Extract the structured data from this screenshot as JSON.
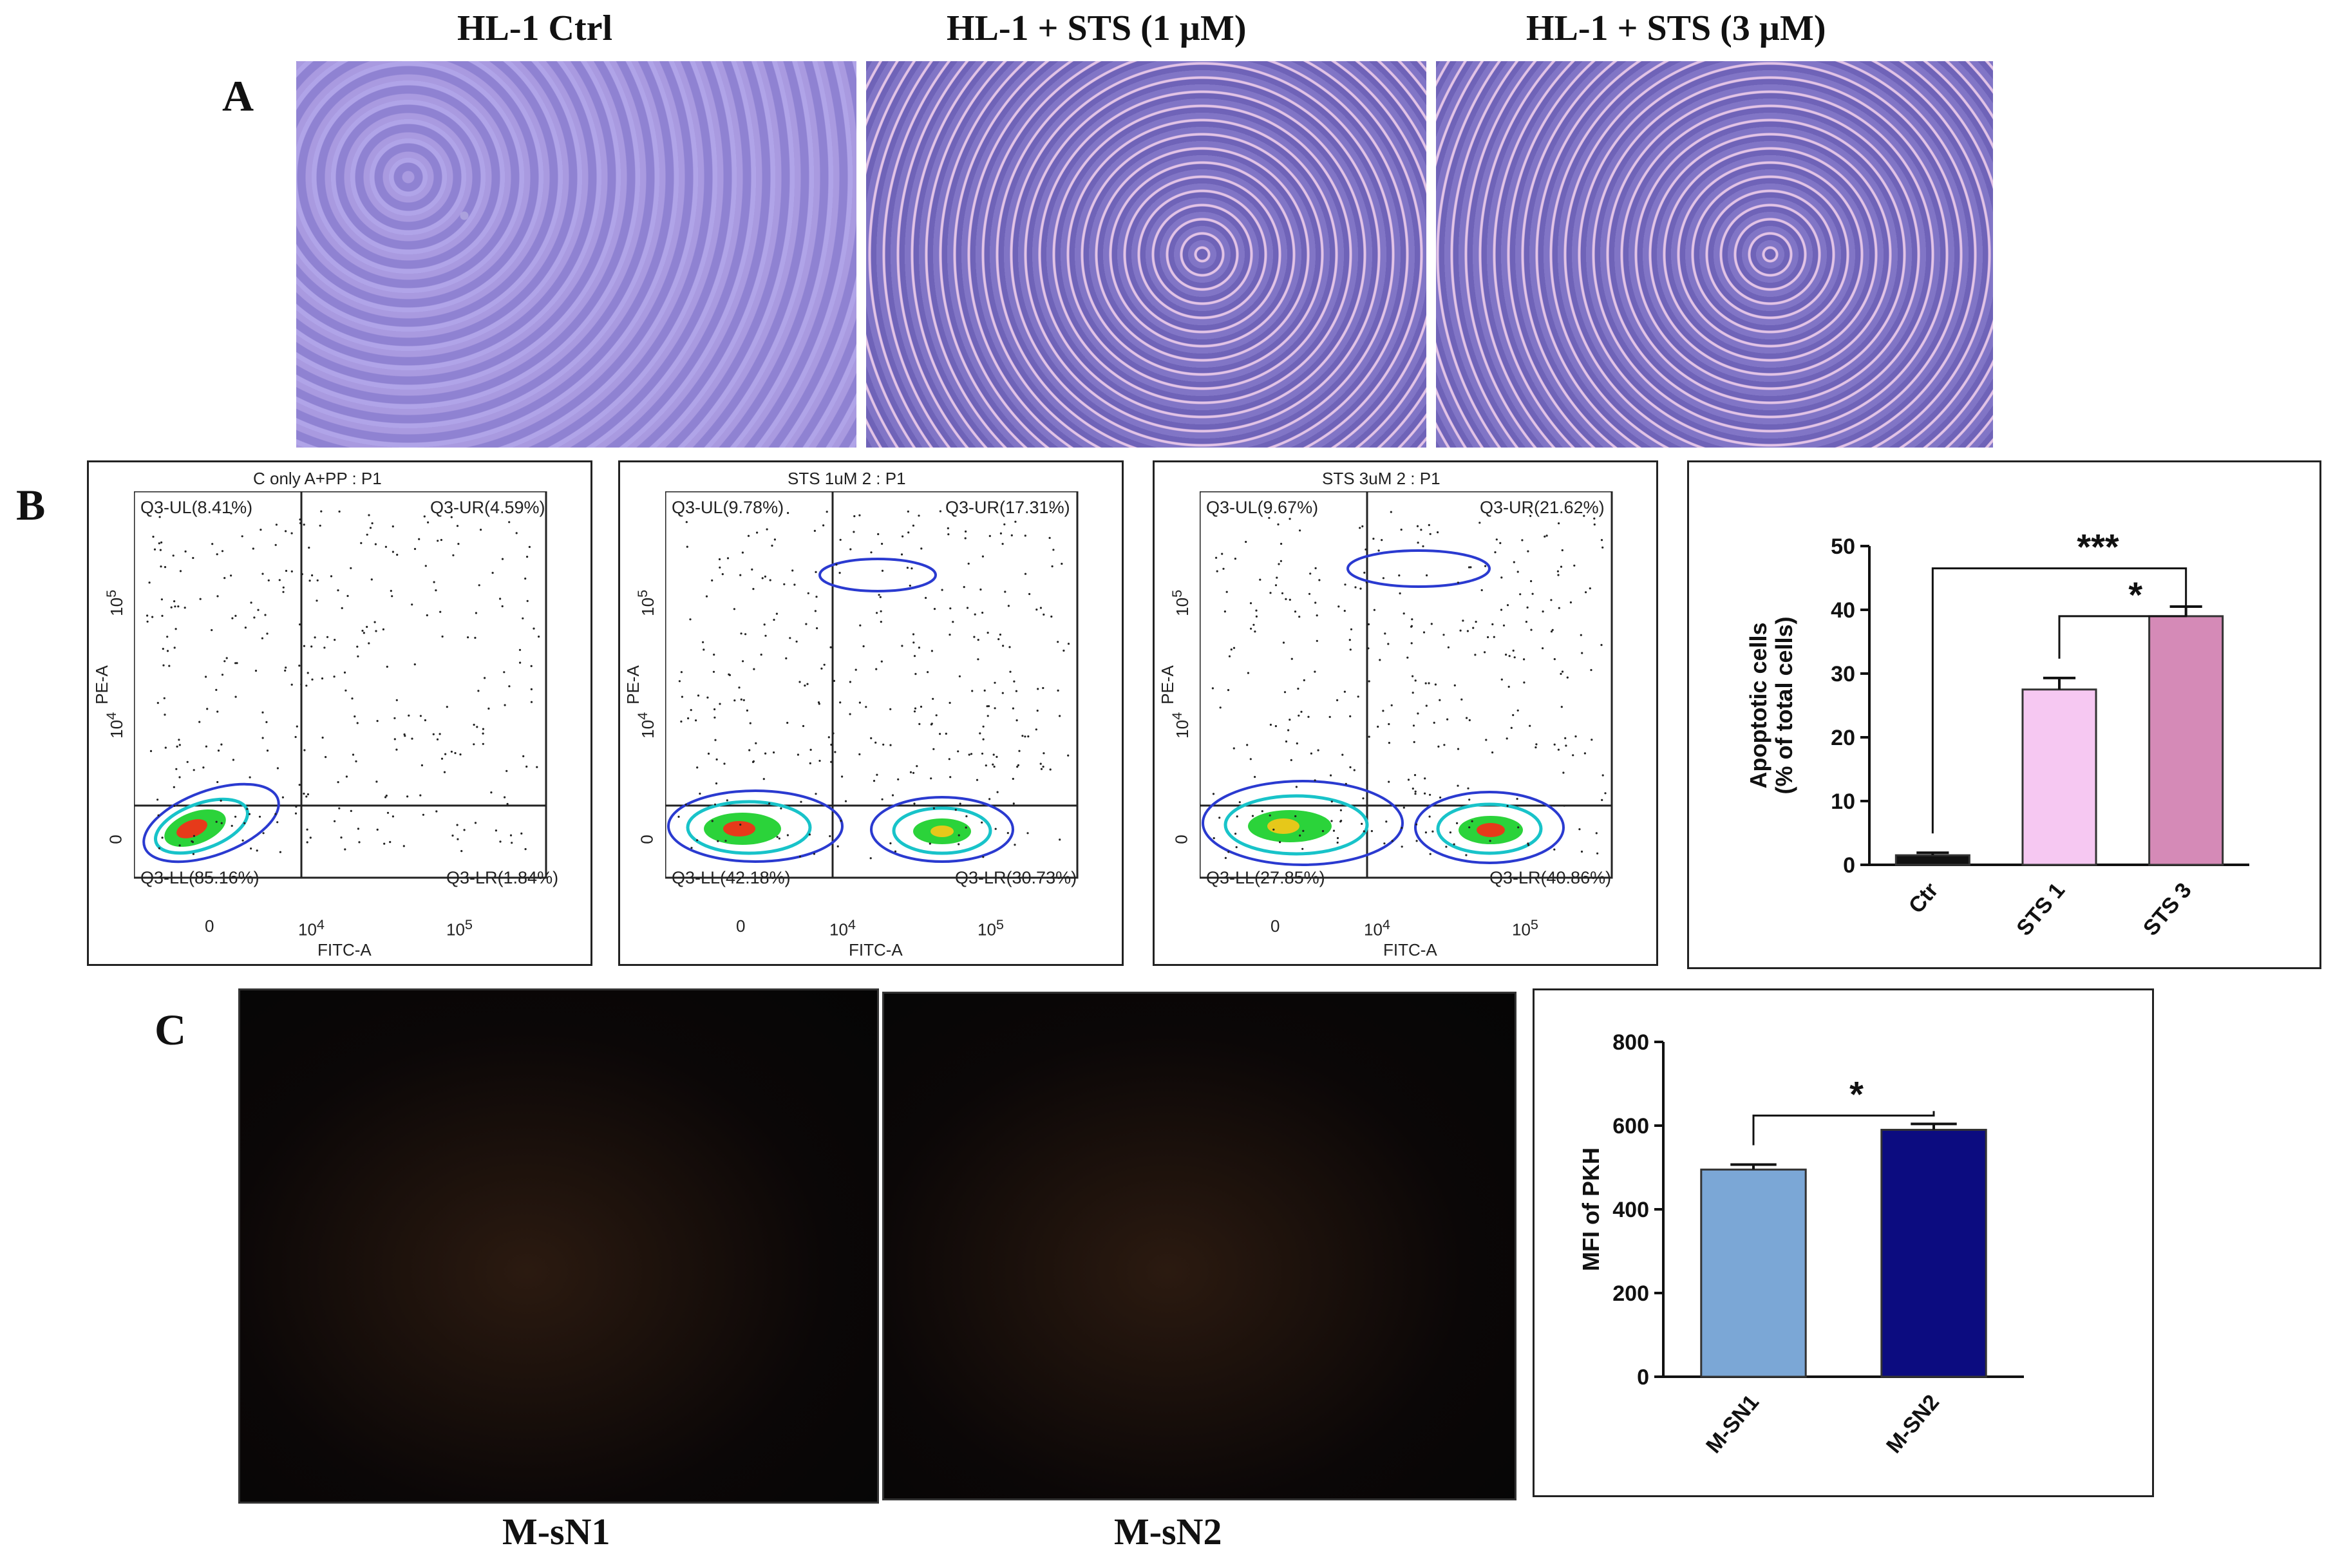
{
  "panels": {
    "A": {
      "letter": "A",
      "titles": [
        "HL-1 Ctrl",
        "HL-1 +  STS (1 µM)",
        "HL-1 +  STS (3 µM)"
      ]
    },
    "B": {
      "letter": "B",
      "flow_plots": [
        {
          "title": "C only A+PP : P1",
          "UL": "Q3-UL(8.41%)",
          "UR": "Q3-UR(4.59%)",
          "LL": "Q3-LL(85.16%)",
          "LR": "Q3-LR(1.84%)"
        },
        {
          "title": "STS 1uM 2 : P1",
          "UL": "Q3-UL(9.78%)",
          "UR": "Q3-UR(17.31%)",
          "LL": "Q3-LL(42.18%)",
          "LR": "Q3-LR(30.73%)"
        },
        {
          "title": "STS 3uM 2 : P1",
          "UL": "Q3-UL(9.67%)",
          "UR": "Q3-UR(21.62%)",
          "LL": "Q3-LL(27.85%)",
          "LR": "Q3-LR(40.86%)"
        }
      ],
      "flow_axes": {
        "xlabel": "FITC-A",
        "ylabel": "PE-A",
        "xticks": [
          "0",
          "10",
          "10"
        ],
        "xtick_exp": [
          "",
          "4",
          "5"
        ],
        "yticks": [
          "0",
          "10",
          "10"
        ],
        "ytick_exp": [
          "",
          "4",
          "5"
        ]
      }
    },
    "C": {
      "letter": "C",
      "captions": [
        "M-sN1",
        "M-sN2"
      ]
    }
  },
  "chart_data": [
    {
      "type": "bar",
      "categories": [
        "Ctr",
        "STS 1",
        "STS 3"
      ],
      "values": [
        1.5,
        27.5,
        39
      ],
      "errors": [
        0.4,
        1.8,
        1.5
      ],
      "colors": [
        "#111111",
        "#f6c8f2",
        "#d58ab7"
      ],
      "ylabel": "Apoptotic cells\n(% of total cells)",
      "ylim": [
        0,
        50
      ],
      "yticks": [
        0,
        10,
        20,
        30,
        40,
        50
      ],
      "significance": [
        {
          "from": "Ctr",
          "to": "STS 3",
          "label": "***"
        },
        {
          "from": "STS 1",
          "to": "STS 3",
          "label": "*"
        }
      ]
    },
    {
      "type": "bar",
      "categories": [
        "M-SN1",
        "M-SN2"
      ],
      "values": [
        495,
        590
      ],
      "errors": [
        12,
        14
      ],
      "colors": [
        "#7ba7d6",
        "#0c0c80"
      ],
      "ylabel": "MFI of PKH",
      "ylim": [
        0,
        800
      ],
      "yticks": [
        0,
        200,
        400,
        600,
        800
      ],
      "significance": [
        {
          "from": "M-SN1",
          "to": "M-SN2",
          "label": "*"
        }
      ]
    }
  ]
}
